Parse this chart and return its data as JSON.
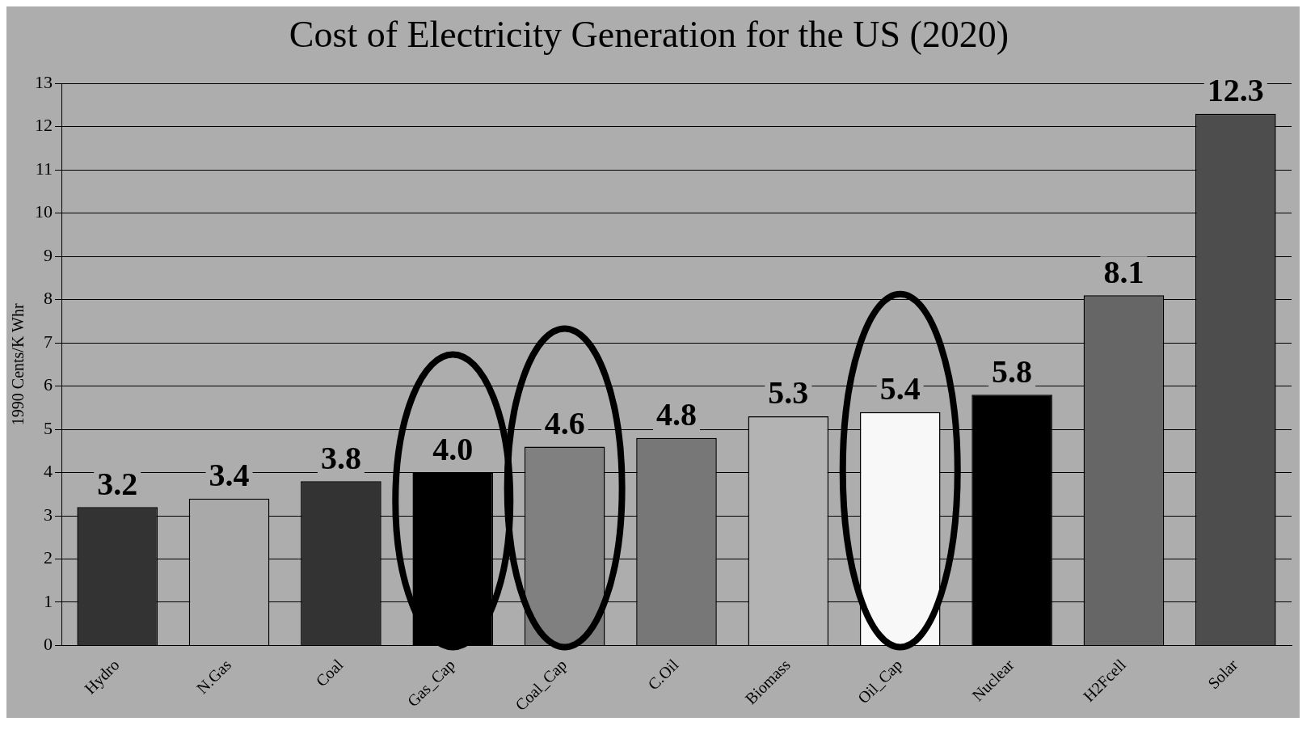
{
  "chart_data": {
    "type": "bar",
    "title": "Cost of Electricity Generation for the US (2020)",
    "ylabel": "1990 Cents/K Whr",
    "categories": [
      "Hydro",
      "N.Gas",
      "Coal",
      "Gas_Cap",
      "Coal_Cap",
      "C.Oil",
      "Biomass",
      "Oil_Cap",
      "Nuclear",
      "H2Fcell",
      "Solar"
    ],
    "values": [
      3.2,
      3.4,
      3.8,
      4.0,
      4.6,
      4.8,
      5.3,
      5.4,
      5.8,
      8.1,
      12.3
    ],
    "colors": [
      "#333333",
      "#a9a9a9",
      "#333333",
      "#000000",
      "#808080",
      "#777777",
      "#b3b3b3",
      "#f8f8f8",
      "#000000",
      "#666666",
      "#4d4d4d"
    ],
    "value_labels": [
      "3.2",
      "3.4",
      "3.8",
      "4.0",
      "4.6",
      "4.8",
      "5.3",
      "5.4",
      "5.8",
      "8.1",
      "12.3"
    ],
    "ylim": [
      0,
      13
    ],
    "yticks": [
      0,
      1,
      2,
      3,
      4,
      5,
      6,
      7,
      8,
      9,
      10,
      11,
      12,
      13
    ],
    "grid": "y",
    "legend": false
  }
}
